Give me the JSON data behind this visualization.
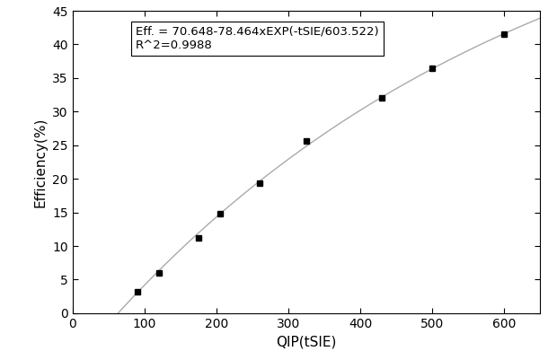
{
  "x_data": [
    90,
    120,
    175,
    205,
    260,
    325,
    430,
    500,
    600
  ],
  "y_data": [
    3.2,
    6.0,
    11.2,
    14.8,
    19.4,
    25.6,
    32.0,
    36.4,
    41.5
  ],
  "fit_a": 70.648,
  "fit_b": 78.464,
  "fit_c": 603.522,
  "equation_line1": "Eff. = 70.648-78.464xEXP(-tSIE/603.522)",
  "equation_line2": "R^2=0.9988",
  "xlabel": "QIP(tSIE)",
  "ylabel": "Efficiency(%)",
  "xlim": [
    0,
    650
  ],
  "ylim": [
    0,
    45
  ],
  "xticks": [
    0,
    100,
    200,
    300,
    400,
    500,
    600
  ],
  "yticks": [
    0,
    5,
    10,
    15,
    20,
    25,
    30,
    35,
    40,
    45
  ],
  "line_color": "#aaaaaa",
  "marker_color": "black",
  "marker_style": "s",
  "marker_size": 5,
  "bg_color": "white",
  "text_color": "black",
  "font_size_label": 11,
  "font_size_tick": 10,
  "font_size_eq": 9.5
}
